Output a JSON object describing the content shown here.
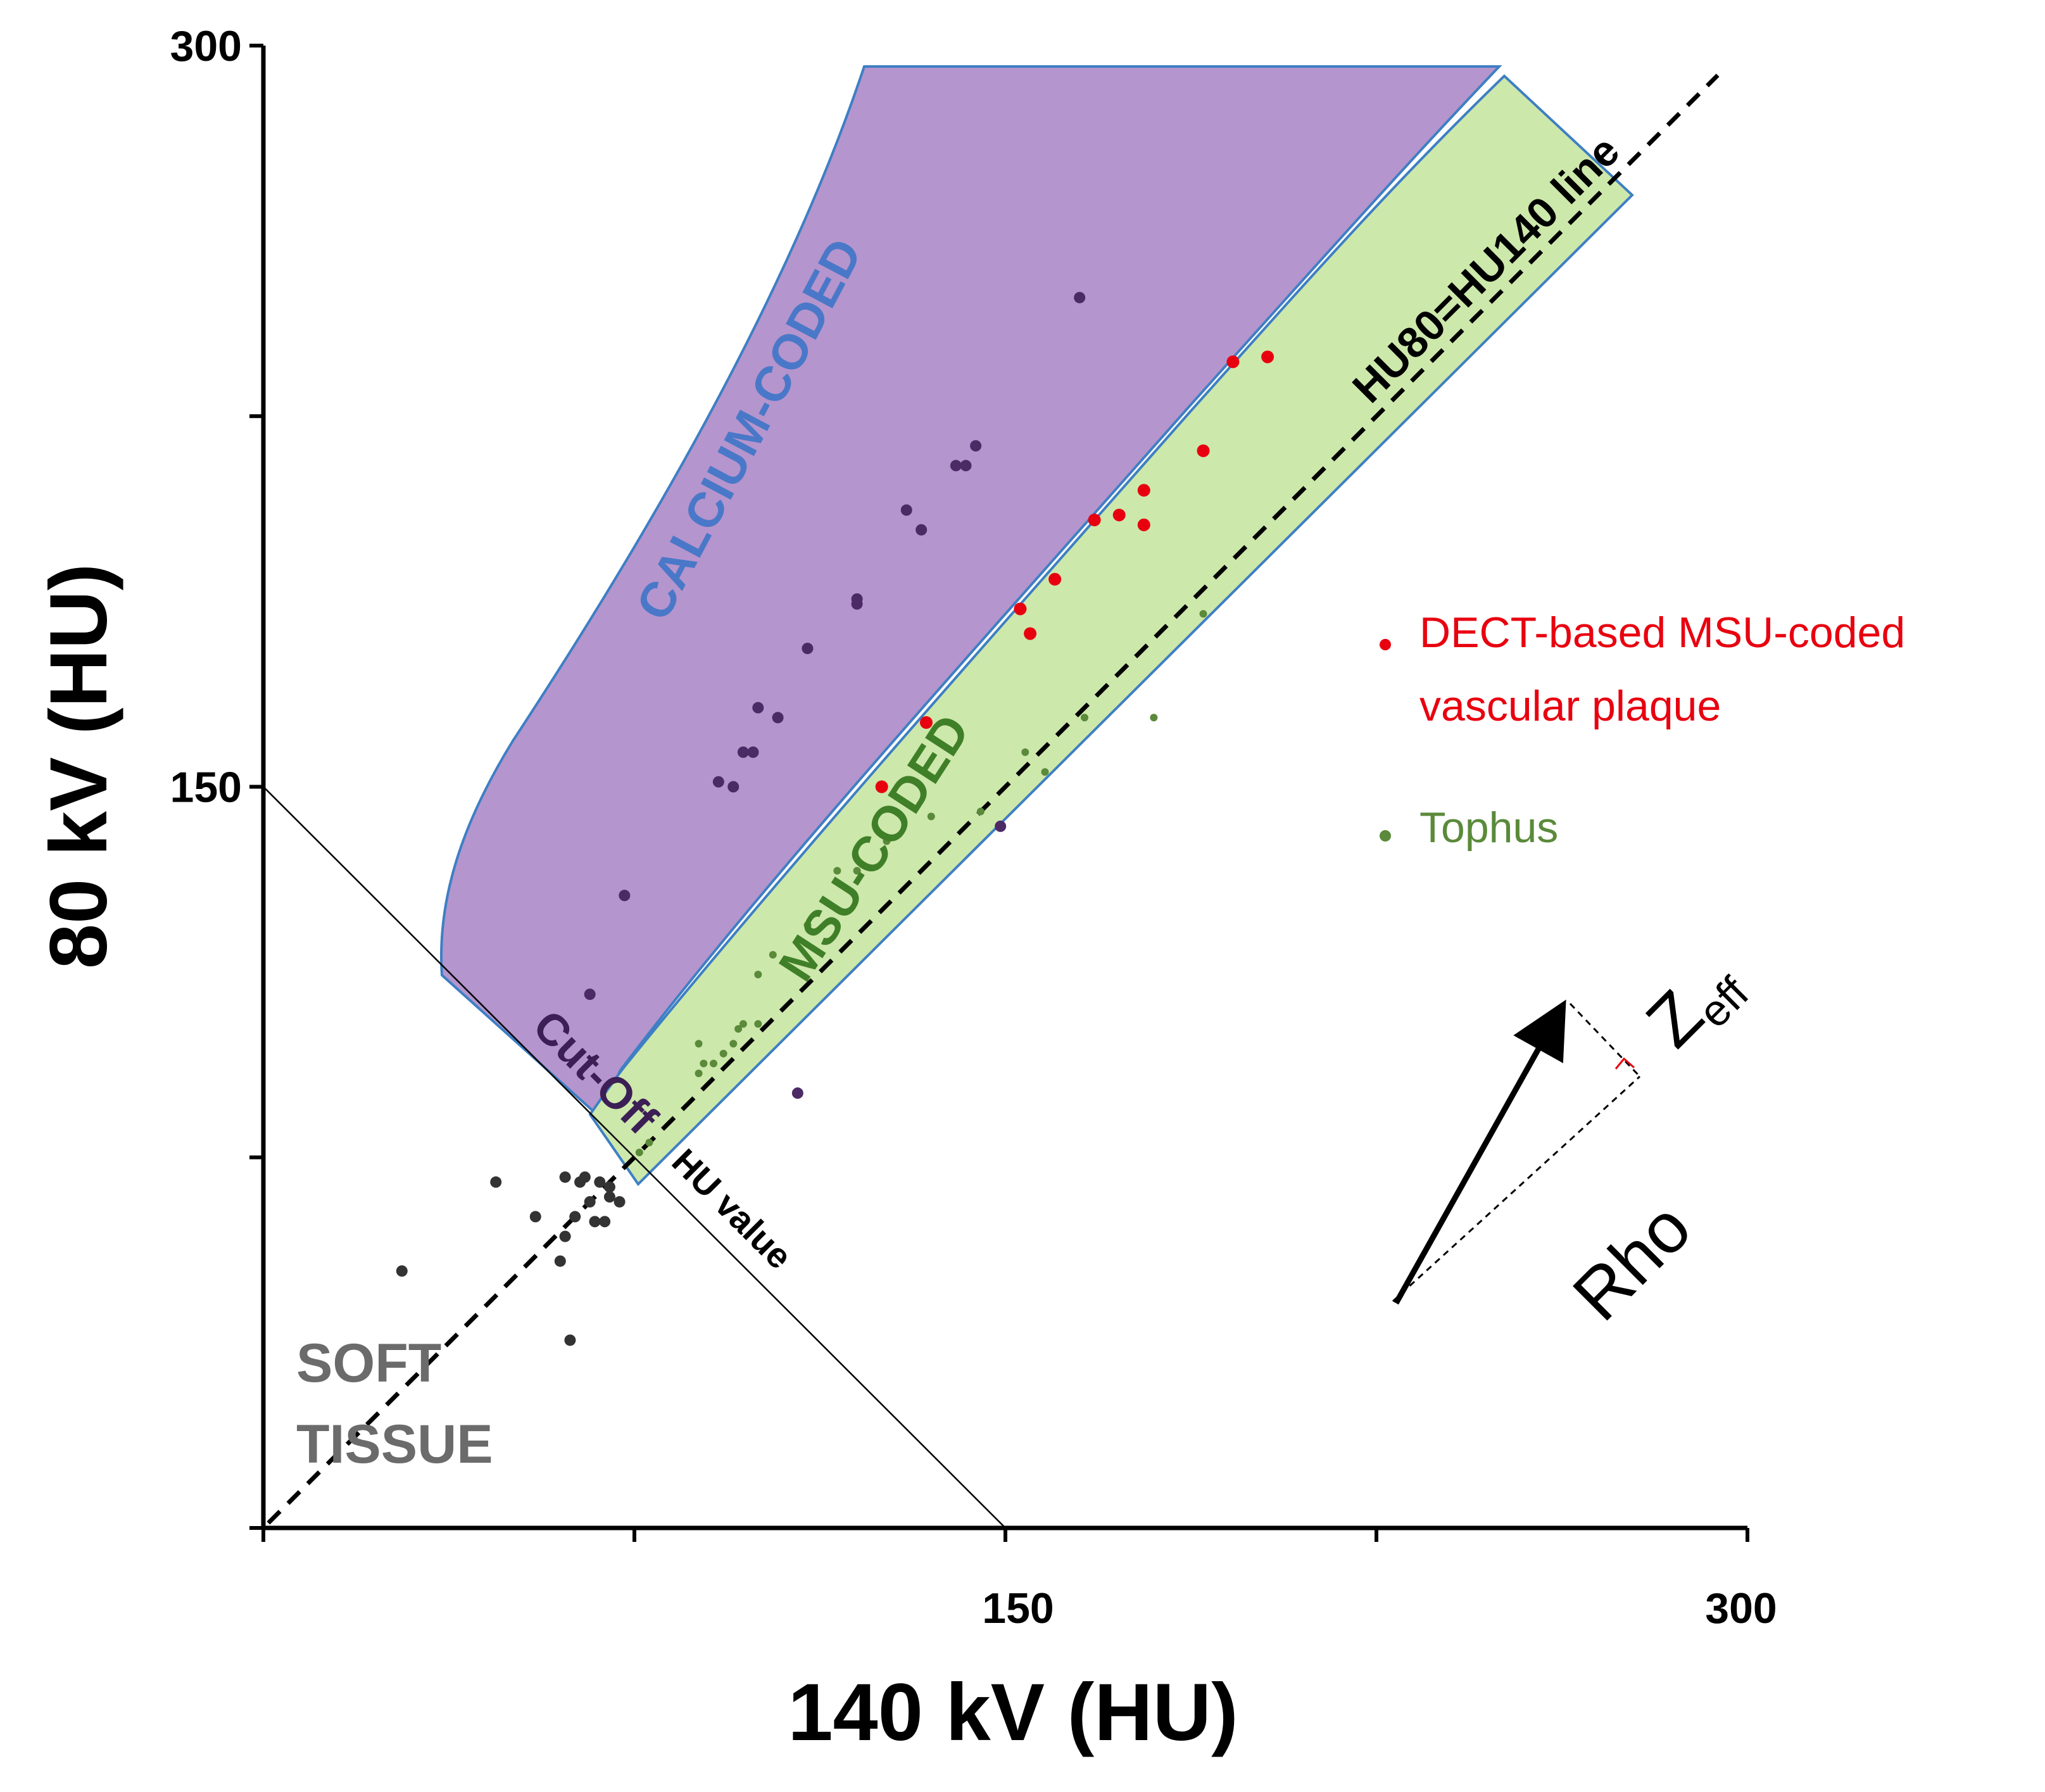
{
  "chart_data": {
    "type": "scatter",
    "xlabel": "140 kV (HU)",
    "ylabel": "80 kV (HU)",
    "xlim": [
      0,
      300
    ],
    "ylim": [
      0,
      300
    ],
    "x_ticks": [
      0,
      75,
      150,
      225,
      300
    ],
    "y_ticks": [
      0,
      75,
      150,
      225,
      300
    ],
    "x_tick_labels": [
      "150",
      "300"
    ],
    "y_tick_labels": [
      "300",
      "150"
    ],
    "colors": {
      "calcium_fill": "#b595cd",
      "msu_fill": "#cde8ab",
      "region_edge": "#3e7fc4",
      "msu_points": "#e8000f",
      "tophus_points": "#5a8a3a",
      "calcium_points": "#4b2a66",
      "soft_points": "#333333"
    },
    "regions": [
      {
        "name": "calcium",
        "label": "CALCIUM-CODED",
        "label_color": "#4a78c8"
      },
      {
        "name": "msu",
        "label": "MSU-CODED",
        "label_color": "#3f7f28"
      }
    ],
    "annotations": {
      "cutoff": "Cut-Off",
      "diagonal": "HU80=HU140 line",
      "hu_value": "HU value",
      "soft_tissue": [
        "SOFT",
        "TISSUE"
      ],
      "vector_z": "Z",
      "vector_z_sub": "eff",
      "vector_rho": "Rho"
    },
    "legend": [
      {
        "label_lines": [
          "DECT-based MSU-coded",
          "vascular plaque"
        ],
        "color": "#e8000f"
      },
      {
        "label_lines": [
          "Tophus"
        ],
        "color": "#5a8a3a"
      }
    ],
    "series": [
      {
        "name": "DECT-based MSU-coded vascular plaque",
        "color": "#e8000f",
        "points": [
          [
            125,
            150
          ],
          [
            134,
            163
          ],
          [
            153,
            186
          ],
          [
            155,
            181
          ],
          [
            160,
            192
          ],
          [
            168,
            204
          ],
          [
            173,
            205
          ],
          [
            178,
            203
          ],
          [
            178,
            210
          ],
          [
            190,
            218
          ],
          [
            196,
            236
          ],
          [
            203,
            237
          ]
        ]
      },
      {
        "name": "Tophus",
        "color": "#5a8a3a",
        "points": [
          [
            88,
            98
          ],
          [
            88,
            92
          ],
          [
            89,
            94
          ],
          [
            91,
            94
          ],
          [
            93,
            96
          ],
          [
            95,
            98
          ],
          [
            96,
            101
          ],
          [
            97,
            102
          ],
          [
            100,
            102
          ],
          [
            100,
            112
          ],
          [
            103,
            116
          ],
          [
            110,
            122
          ],
          [
            116,
            133
          ],
          [
            120,
            133
          ],
          [
            126,
            139
          ],
          [
            135,
            144
          ],
          [
            145,
            145
          ],
          [
            154,
            157
          ],
          [
            158,
            153
          ],
          [
            166,
            164
          ],
          [
            180,
            164
          ],
          [
            190,
            185
          ],
          [
            76,
            76
          ],
          [
            78,
            78
          ]
        ]
      },
      {
        "name": "Calcium",
        "color": "#4b2a66",
        "points": [
          [
            66,
            108
          ],
          [
            73,
            128
          ],
          [
            92,
            151
          ],
          [
            95,
            150
          ],
          [
            97,
            157
          ],
          [
            99,
            157
          ],
          [
            100,
            166
          ],
          [
            104,
            164
          ],
          [
            110,
            178
          ],
          [
            120,
            187
          ],
          [
            120,
            188
          ],
          [
            130,
            206
          ],
          [
            133,
            202
          ],
          [
            140,
            215
          ],
          [
            142,
            215
          ],
          [
            144,
            219
          ],
          [
            165,
            249
          ],
          [
            108,
            88
          ],
          [
            149,
            142
          ]
        ]
      },
      {
        "name": "Soft tissue",
        "color": "#333333",
        "points": [
          [
            28,
            52
          ],
          [
            47,
            70
          ],
          [
            55,
            63
          ],
          [
            60,
            54
          ],
          [
            61,
            59
          ],
          [
            61,
            71
          ],
          [
            62,
            38
          ],
          [
            63,
            63
          ],
          [
            64,
            70
          ],
          [
            65,
            71
          ],
          [
            66,
            66
          ],
          [
            67,
            62
          ],
          [
            68,
            70
          ],
          [
            69,
            62
          ],
          [
            70,
            69
          ],
          [
            70,
            67
          ],
          [
            72,
            66
          ]
        ]
      }
    ]
  }
}
